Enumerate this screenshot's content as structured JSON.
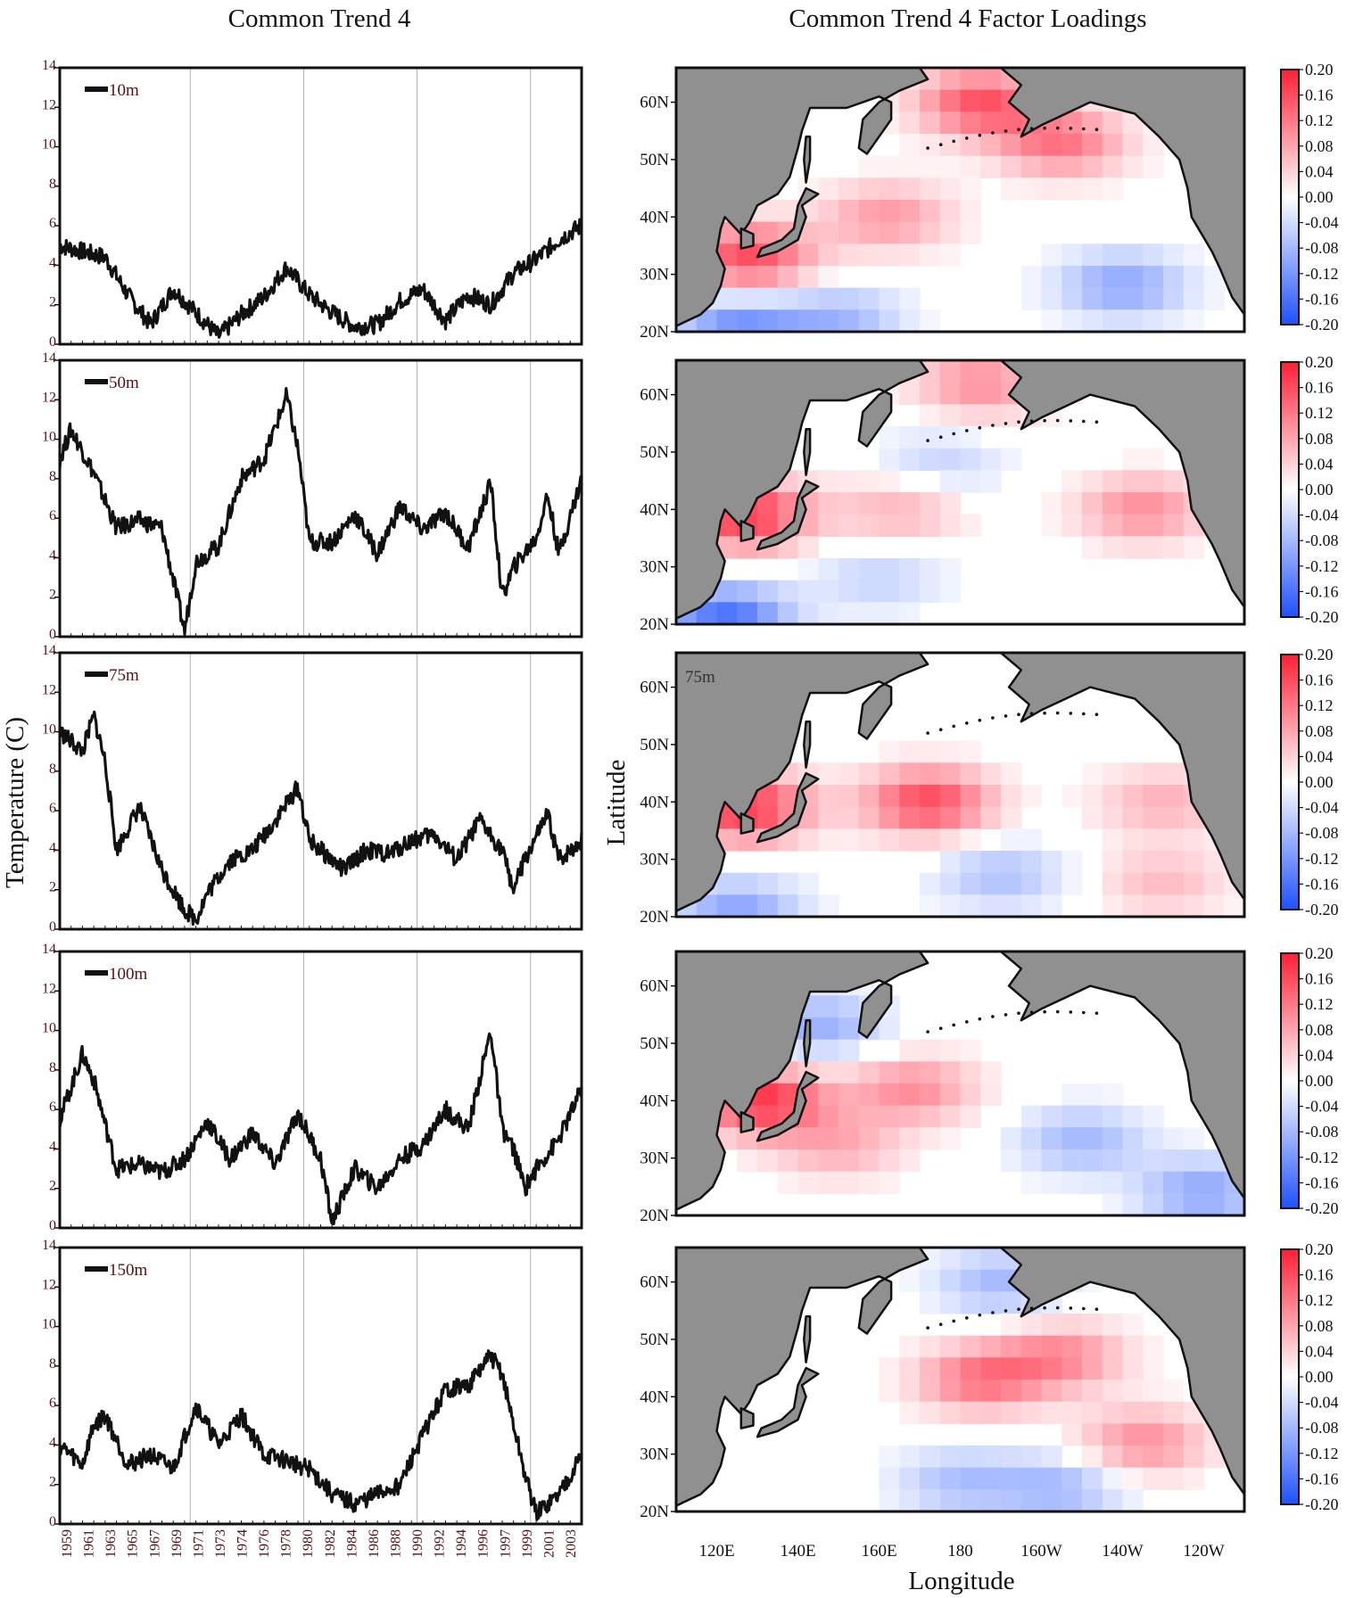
{
  "titles": {
    "left": "Common Trend 4",
    "right": "Common Trend 4 Factor Loadings"
  },
  "axis_labels": {
    "left_y": "Temperature (C)",
    "map_y": "Latitude",
    "map_x": "Longitude"
  },
  "colors": {
    "line": "#111111",
    "land": "#909090",
    "ocean": "#ffffff",
    "pos": "#ff1e37",
    "neg": "#1e50ff",
    "grid": "#b0b0b0",
    "tick_text": "#5a1010"
  },
  "chart_data": [
    {
      "type": "line",
      "title": "Common Trend 4",
      "legend": "10m",
      "ylim": [
        0,
        14
      ],
      "yticks": [
        "0",
        "2",
        "4",
        "6",
        "8",
        "10",
        "12",
        "14"
      ],
      "x": [
        1959,
        1961,
        1963,
        1965,
        1967,
        1969,
        1971,
        1973,
        1975,
        1977,
        1979,
        1981,
        1983,
        1985,
        1987,
        1989,
        1991,
        1993,
        1995,
        1997,
        1999,
        2001,
        2003,
        2005
      ],
      "values": [
        5.0,
        4.7,
        4.4,
        2.5,
        1.0,
        2.8,
        1.6,
        0.4,
        1.5,
        2.4,
        3.9,
        2.5,
        1.6,
        0.9,
        1.0,
        2.2,
        2.8,
        1.2,
        2.5,
        2.0,
        3.6,
        4.3,
        5.3,
        6.0
      ]
    },
    {
      "type": "line",
      "legend": "50m",
      "ylim": [
        0,
        14
      ],
      "yticks": [
        "0",
        "2",
        "4",
        "6",
        "8",
        "10",
        "12",
        "14"
      ],
      "x": [
        1959,
        1960,
        1962,
        1964,
        1966,
        1968,
        1970,
        1971,
        1973,
        1975,
        1977,
        1979,
        1980,
        1981,
        1983,
        1985,
        1987,
        1989,
        1991,
        1993,
        1995,
        1997,
        1998,
        1999,
        2001,
        2002,
        2003,
        2005
      ],
      "values": [
        9.0,
        10.5,
        8.3,
        5.5,
        5.9,
        5.5,
        0.3,
        3.8,
        4.6,
        8.0,
        9.0,
        12.2,
        9.5,
        4.8,
        4.8,
        6.2,
        4.2,
        6.6,
        5.4,
        6.3,
        4.5,
        7.8,
        2.0,
        3.5,
        5.0,
        7.2,
        4.2,
        8.0
      ]
    },
    {
      "type": "line",
      "legend": "75m",
      "ylim": [
        0,
        14
      ],
      "yticks": [
        "0",
        "2",
        "4",
        "6",
        "8",
        "10",
        "12",
        "14"
      ],
      "x": [
        1959,
        1961,
        1962,
        1963,
        1964,
        1966,
        1968,
        1970,
        1971,
        1972,
        1974,
        1976,
        1978,
        1980,
        1981,
        1982,
        1984,
        1986,
        1988,
        1990,
        1992,
        1994,
        1996,
        1998,
        1999,
        2000,
        2002,
        2003,
        2005
      ],
      "values": [
        10.0,
        9.0,
        10.8,
        8.5,
        4.0,
        6.2,
        3.0,
        1.0,
        0.5,
        1.8,
        3.5,
        4.0,
        5.5,
        7.2,
        4.5,
        4.0,
        3.0,
        4.0,
        3.8,
        4.5,
        4.8,
        3.5,
        5.5,
        4.0,
        2.0,
        3.5,
        5.8,
        3.5,
        4.5
      ]
    },
    {
      "type": "line",
      "legend": "100m",
      "ylim": [
        0,
        14
      ],
      "yticks": [
        "0",
        "2",
        "4",
        "6",
        "8",
        "10",
        "12",
        "14"
      ],
      "x": [
        1959,
        1961,
        1962,
        1964,
        1966,
        1968,
        1970,
        1972,
        1974,
        1976,
        1978,
        1980,
        1982,
        1983,
        1985,
        1987,
        1989,
        1991,
        1993,
        1995,
        1997,
        1998,
        1999,
        2000,
        2001,
        2003,
        2005
      ],
      "values": [
        5.5,
        8.8,
        7.5,
        3.0,
        3.2,
        2.8,
        3.5,
        5.4,
        3.5,
        4.8,
        3.2,
        5.8,
        3.5,
        0.3,
        3.0,
        2.0,
        3.5,
        4.2,
        6.0,
        5.0,
        10.0,
        5.0,
        4.0,
        2.0,
        3.0,
        4.5,
        7.0
      ]
    },
    {
      "type": "line",
      "legend": "150m",
      "ylim": [
        0,
        14
      ],
      "yticks": [
        "0",
        "2",
        "4",
        "6",
        "8",
        "10",
        "12",
        "14"
      ],
      "x": [
        1959,
        1961,
        1962,
        1963,
        1965,
        1967,
        1969,
        1971,
        1973,
        1975,
        1977,
        1979,
        1981,
        1983,
        1985,
        1987,
        1989,
        1991,
        1993,
        1995,
        1997,
        1998,
        1999,
        2000,
        2001,
        2003,
        2005
      ],
      "values": [
        4.0,
        3.0,
        5.0,
        5.5,
        3.0,
        3.5,
        2.8,
        6.0,
        4.0,
        5.5,
        3.5,
        3.2,
        2.8,
        1.5,
        1.0,
        1.5,
        2.0,
        4.5,
        6.8,
        7.0,
        8.5,
        7.6,
        5.0,
        2.5,
        0.5,
        1.5,
        3.5
      ]
    }
  ],
  "x_ticks": [
    "1959",
    "1961",
    "1963",
    "1965",
    "1967",
    "1969",
    "1971",
    "1973",
    "1974",
    "1976",
    "1978",
    "1980",
    "1982",
    "1984",
    "1986",
    "1988",
    "1990",
    "1992",
    "1994",
    "1996",
    "1997",
    "1999",
    "2001",
    "2003"
  ],
  "maps": {
    "lat_ticks": [
      "60N",
      "50N",
      "40N",
      "30N",
      "20N"
    ],
    "lon_ticks": [
      "120E",
      "140E",
      "160E",
      "180",
      "160W",
      "140W",
      "120W"
    ],
    "colorbar_ticks": [
      "0.20",
      "0.16",
      "0.12",
      "0.08",
      "0.04",
      "0.00",
      "-0.04",
      "-0.08",
      "-0.12",
      "-0.16",
      "-0.20"
    ],
    "panels": [
      {
        "label": "",
        "hotspots": [
          {
            "lon": 185,
            "lat": 60,
            "v": 0.15
          },
          {
            "lon": 205,
            "lat": 53,
            "v": 0.12
          },
          {
            "lon": 128,
            "lat": 33,
            "v": 0.16
          },
          {
            "lon": 162,
            "lat": 40,
            "v": 0.09
          },
          {
            "lon": 220,
            "lat": 28,
            "v": -0.1
          },
          {
            "lon": 150,
            "lat": 22,
            "v": -0.08
          },
          {
            "lon": 125,
            "lat": 21,
            "v": -0.12
          }
        ]
      },
      {
        "label": "",
        "hotspots": [
          {
            "lon": 185,
            "lat": 62,
            "v": 0.1
          },
          {
            "lon": 127,
            "lat": 39,
            "v": 0.18
          },
          {
            "lon": 225,
            "lat": 40,
            "v": 0.1
          },
          {
            "lon": 165,
            "lat": 40,
            "v": 0.07
          },
          {
            "lon": 175,
            "lat": 48,
            "v": -0.05
          },
          {
            "lon": 160,
            "lat": 28,
            "v": -0.05
          },
          {
            "lon": 122,
            "lat": 21,
            "v": -0.16
          }
        ]
      },
      {
        "label": "75m",
        "hotspots": [
          {
            "lon": 172,
            "lat": 40,
            "v": 0.16
          },
          {
            "lon": 127,
            "lat": 39,
            "v": 0.18
          },
          {
            "lon": 230,
            "lat": 40,
            "v": 0.07
          },
          {
            "lon": 190,
            "lat": 27,
            "v": -0.07
          },
          {
            "lon": 230,
            "lat": 26,
            "v": 0.06
          },
          {
            "lon": 125,
            "lat": 21,
            "v": -0.1
          }
        ]
      },
      {
        "label": "",
        "hotspots": [
          {
            "lon": 131,
            "lat": 40,
            "v": 0.18
          },
          {
            "lon": 168,
            "lat": 42,
            "v": 0.1
          },
          {
            "lon": 150,
            "lat": 32,
            "v": 0.07
          },
          {
            "lon": 145,
            "lat": 53,
            "v": -0.09
          },
          {
            "lon": 210,
            "lat": 33,
            "v": -0.08
          },
          {
            "lon": 240,
            "lat": 24,
            "v": -0.1
          }
        ]
      },
      {
        "label": "",
        "hotspots": [
          {
            "lon": 185,
            "lat": 43,
            "v": 0.12
          },
          {
            "lon": 205,
            "lat": 47,
            "v": 0.1
          },
          {
            "lon": 225,
            "lat": 32,
            "v": 0.1
          },
          {
            "lon": 190,
            "lat": 60,
            "v": -0.08
          },
          {
            "lon": 180,
            "lat": 25,
            "v": -0.07
          },
          {
            "lon": 205,
            "lat": 24,
            "v": -0.08
          }
        ]
      }
    ]
  }
}
